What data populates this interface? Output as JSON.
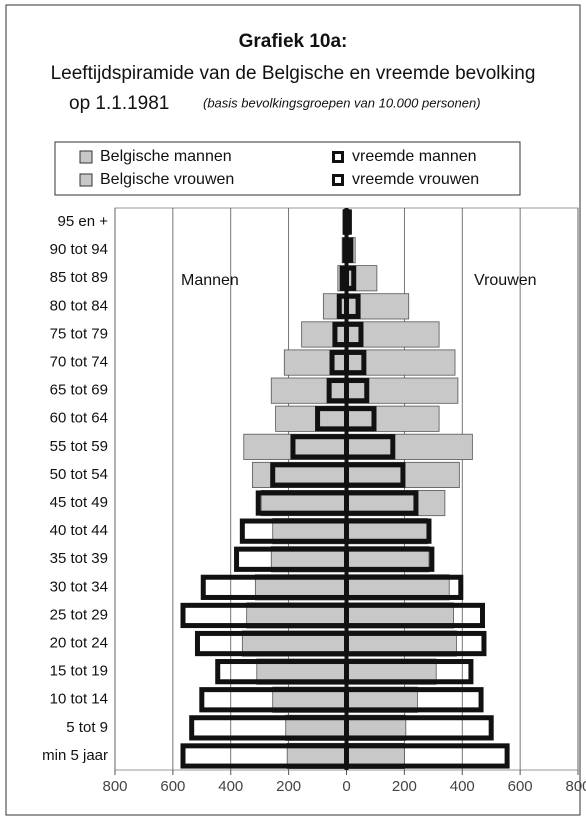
{
  "chart_data": {
    "type": "pyramid",
    "title": "Grafiek 10a:",
    "subtitle": "Leeftijdspiramide van de Belgische en vreemde bevolking",
    "subtitle_date": "op 1.1.1981",
    "subtitle_note": "(basis bevolkingsgroepen van 10.000 personen)",
    "annotations": [
      "Mannen",
      "Vrouwen"
    ],
    "categories": [
      "95 en +",
      "90 tot 94",
      "85 tot 89",
      "80 tot 84",
      "75 tot 79",
      "70 tot 74",
      "65 tot 69",
      "60 tot 64",
      "55 tot 59",
      "50 tot 54",
      "45 tot 49",
      "40 tot 44",
      "35 tot 39",
      "30 tot 34",
      "25 tot 29",
      "20 tot 24",
      "15 tot 19",
      "10 tot 14",
      "5 tot 9",
      "min 5 jaar"
    ],
    "series": [
      {
        "name": "Belgische mannen",
        "color": "#c8c8c8",
        "style": "fill",
        "values": [
          -10,
          -15,
          -30,
          -80,
          -155,
          -215,
          -260,
          -245,
          -355,
          -325,
          -295,
          -255,
          -260,
          -315,
          -345,
          -360,
          -310,
          -255,
          -210,
          -205
        ]
      },
      {
        "name": "Belgische vrouwen",
        "color": "#c8c8c8",
        "style": "fill",
        "values": [
          10,
          30,
          105,
          215,
          320,
          375,
          385,
          320,
          435,
          390,
          340,
          280,
          285,
          355,
          370,
          380,
          310,
          245,
          205,
          200
        ]
      },
      {
        "name": "vreemde mannen",
        "color": "#111111",
        "style": "outline",
        "values": [
          -5,
          -5,
          -15,
          -25,
          -40,
          -50,
          -60,
          -100,
          -185,
          -255,
          -305,
          -360,
          -380,
          -495,
          -565,
          -515,
          -445,
          -500,
          -535,
          -565
        ]
      },
      {
        "name": "vreemde vrouwen",
        "color": "#111111",
        "style": "outline",
        "values": [
          10,
          15,
          25,
          40,
          50,
          60,
          70,
          95,
          160,
          195,
          240,
          285,
          295,
          395,
          470,
          475,
          430,
          465,
          500,
          555
        ]
      }
    ],
    "xlim": [
      -800,
      800
    ],
    "xticks": [
      {
        "value": -800,
        "label": "800"
      },
      {
        "value": -600,
        "label": "600"
      },
      {
        "value": -400,
        "label": "400"
      },
      {
        "value": -200,
        "label": "200"
      },
      0,
      200,
      400,
      600,
      800
    ],
    "grid": true
  }
}
